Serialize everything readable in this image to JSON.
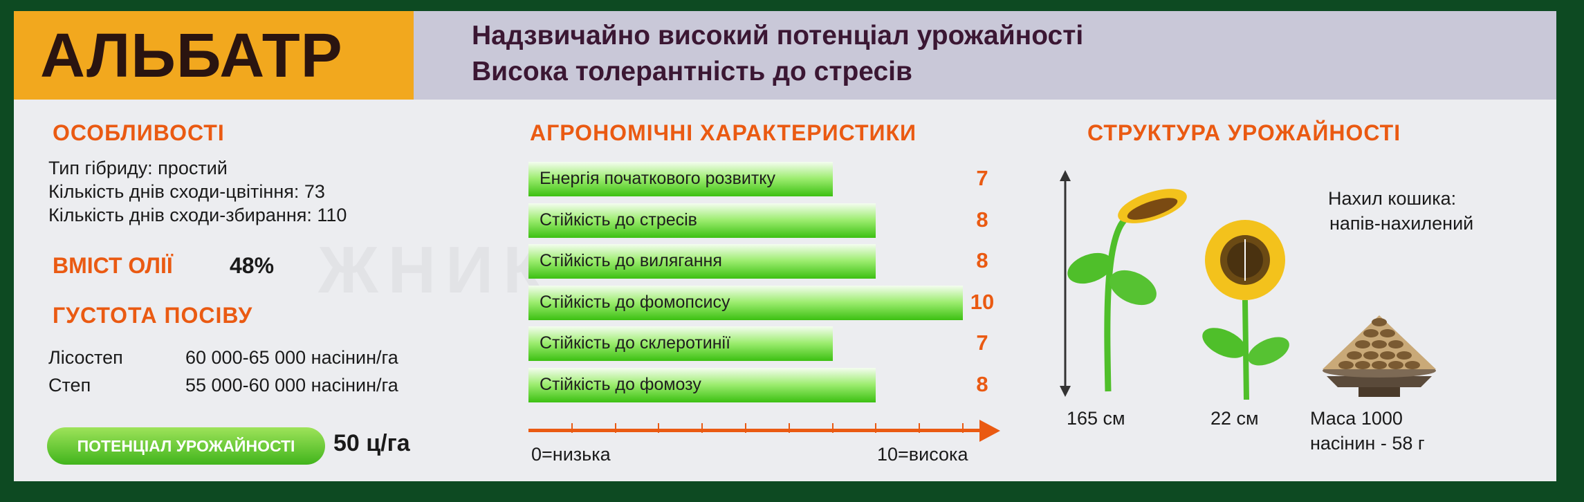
{
  "header": {
    "title": "АЛЬБАТР",
    "subtitle_line1": "Надзвичайно високий потенціал урожайності",
    "subtitle_line2": "Висока толерантність до стресів"
  },
  "features": {
    "heading": "ОСОБЛИВОСТІ",
    "lines": [
      "Тип гібриду: простий",
      "Кількість днів сходи-цвітіння: 73",
      "Кількість днів сходи-збирання: 110"
    ]
  },
  "oil": {
    "label": "ВМІСТ ОЛІЇ",
    "value": "48%"
  },
  "density": {
    "heading": "ГУСТОТА ПОСІВУ",
    "rows": [
      {
        "zone": "Лісостеп",
        "value": "60 000-65 000 насінин/га"
      },
      {
        "zone": "Степ",
        "value": "55 000-60 000 насінин/га"
      }
    ]
  },
  "potential": {
    "label": "ПОТЕНЦІАЛ УРОЖАЙНОСТІ",
    "value": "50 ц/га"
  },
  "agro": {
    "heading": "АГРОНОМІЧНІ ХАРАКТЕРИСТИКИ",
    "scale_min_label": "0=низька",
    "scale_max_label": "10=висока"
  },
  "chart_data": {
    "type": "bar",
    "orientation": "horizontal",
    "title": "АГРОНОМІЧНІ ХАРАКТЕРИСТИКИ",
    "xlim": [
      0,
      10
    ],
    "grid": false,
    "categories": [
      "Енергія початкового розвитку",
      "Стійкість до стресів",
      "Стійкість до вилягання",
      "Стійкість до фомопсису",
      "Стійкість до склеротинії",
      "Стійкість до фомозу"
    ],
    "values": [
      7,
      8,
      8,
      10,
      7,
      8
    ],
    "value_labels": [
      "7",
      "8",
      "8",
      "10",
      "7",
      "8"
    ],
    "bar_color": "#3cc012",
    "value_color": "#ea5a12",
    "axis_color": "#ea5a12"
  },
  "structure": {
    "heading": "СТРУКТУРА УРОЖАЙНОСТІ",
    "height_label": "165 см",
    "head_label": "22 см",
    "tilt_line1": "Нахил кошика:",
    "tilt_line2": "напів-нахилений",
    "mass_line1": "Маса 1000",
    "mass_line2": "насінин - 58 г"
  },
  "colors": {
    "accent_orange": "#ea5a12",
    "title_bg": "#f2a81e",
    "subtitle_bg": "#c9c8d8",
    "frame_green": "#0d4a22"
  }
}
